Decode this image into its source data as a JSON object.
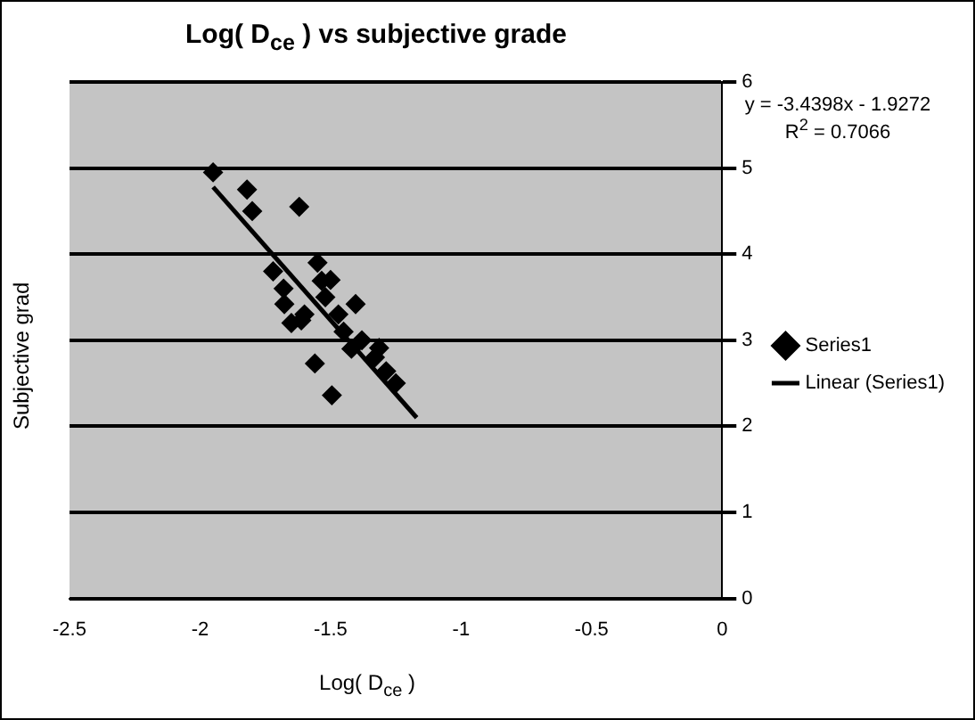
{
  "chart_data": {
    "type": "scatter",
    "title": "Log( D$_{ce}$ ) vs subjective grade",
    "xlabel": "Log( D$_{ce}$ )",
    "ylabel": "Subjective grad",
    "annotations": [
      "y = -3.4398x - 1.9272",
      "R$^{2}$ = 0.7066"
    ],
    "series": [
      {
        "name": "Series1",
        "type": "scatter",
        "color": "#000000",
        "marker": "diamond",
        "x": [
          -1.95,
          -1.82,
          -1.8,
          -1.62,
          -1.72,
          -1.68,
          -1.6,
          -1.55,
          -1.52,
          -1.5,
          -1.677,
          -1.534,
          -1.404,
          -1.314,
          -1.56,
          -1.495,
          -1.287,
          -1.612,
          -1.45,
          -1.38,
          -1.33,
          -1.25,
          -1.65,
          -1.47,
          -1.42
        ],
        "values": [
          4.95,
          4.75,
          4.5,
          4.55,
          3.8,
          3.6,
          3.3,
          3.9,
          3.5,
          3.7,
          3.42,
          3.69,
          3.42,
          2.91,
          2.73,
          2.36,
          2.64,
          3.23,
          3.1,
          3.0,
          2.8,
          2.5,
          3.2,
          3.3,
          2.9
        ]
      },
      {
        "name": "Linear (Series1)",
        "type": "line",
        "color": "#000000",
        "marker": "none",
        "x": [
          -1.95,
          -1.17
        ],
        "values": [
          4.78,
          2.1
        ]
      }
    ],
    "xlim": [
      -2.5,
      0
    ],
    "xticks": [
      -2.5,
      -2,
      -1.5,
      -1,
      -0.5,
      0
    ],
    "ylim": [
      0,
      6
    ],
    "yticks": [
      0,
      1,
      2,
      3,
      4,
      5,
      6
    ],
    "grid": "y",
    "legend": "right"
  }
}
